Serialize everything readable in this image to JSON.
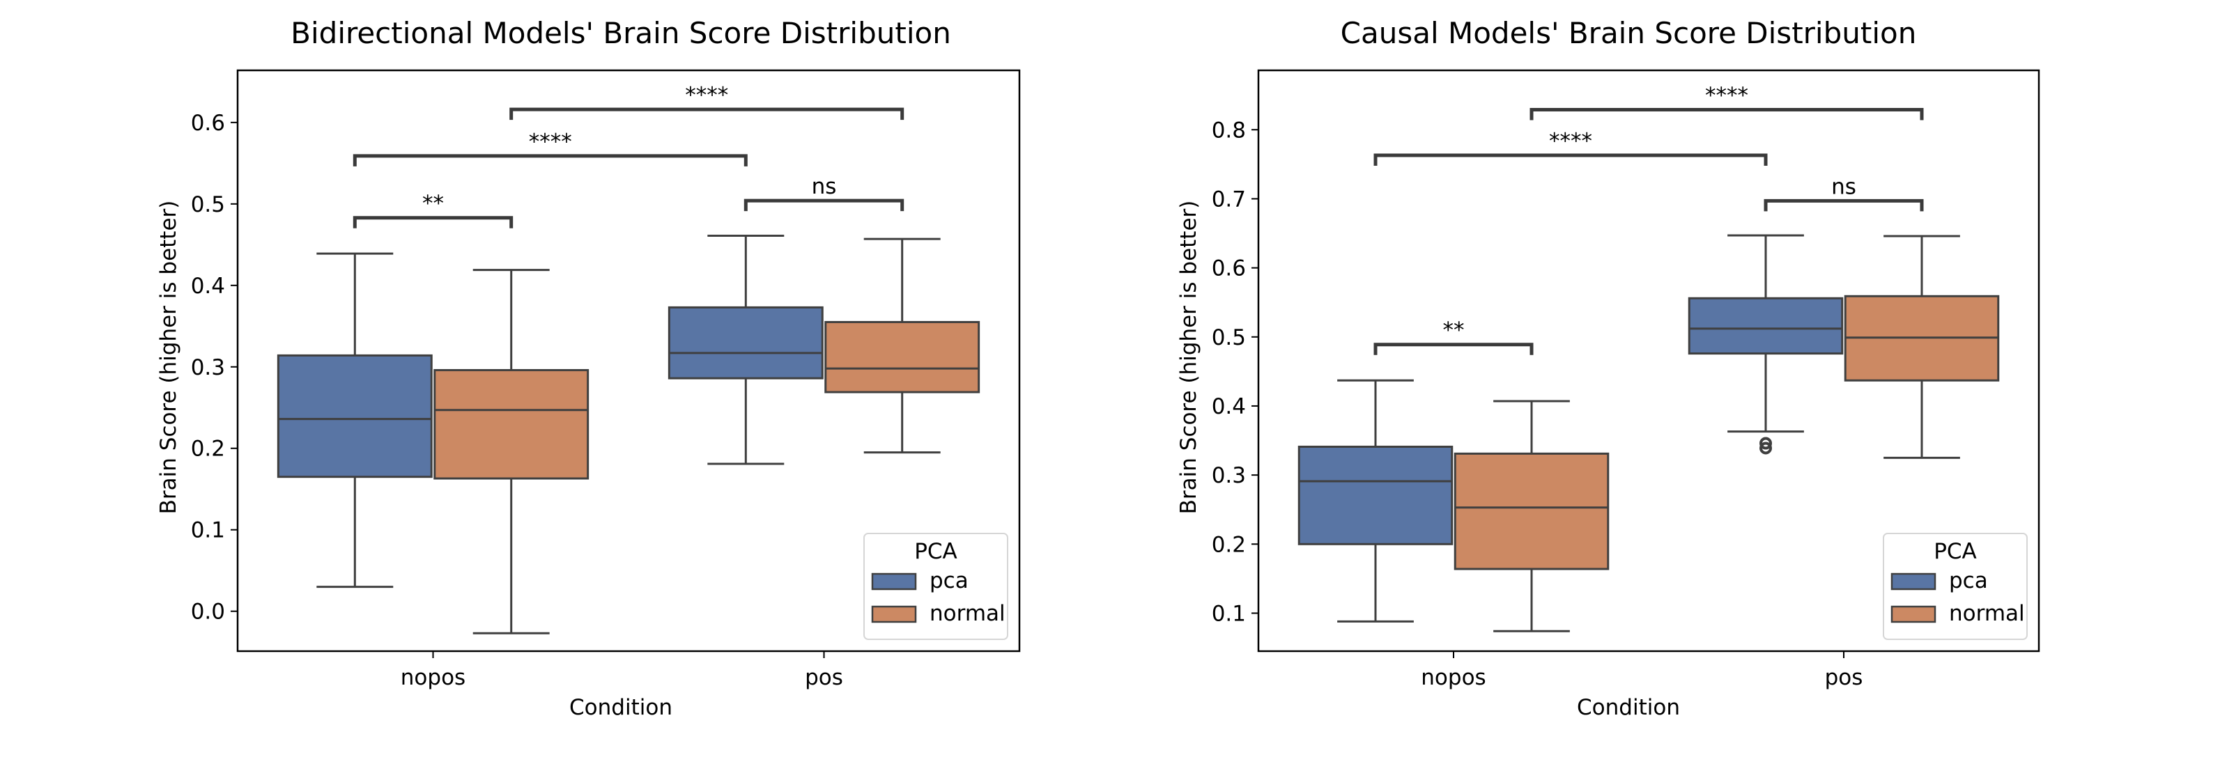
{
  "chart_data": [
    {
      "type": "box",
      "title": "Bidirectional Models' Brain Score Distribution",
      "xlabel": "Condition",
      "ylabel": "Brain Score (higher is better)",
      "ylim": [
        -0.049,
        0.664
      ],
      "yticks": [
        0.0,
        0.1,
        0.2,
        0.3,
        0.4,
        0.5,
        0.6
      ],
      "ytick_labels": [
        "0.0",
        "0.1",
        "0.2",
        "0.3",
        "0.4",
        "0.5",
        "0.6"
      ],
      "categories": [
        "nopos",
        "pos"
      ],
      "grid": false,
      "legend": {
        "title": "PCA",
        "placement": "lower-right",
        "entries": [
          "pca",
          "normal"
        ]
      },
      "series": [
        {
          "name": "pca",
          "color": "#5975a4",
          "boxes": [
            {
              "category": "nopos",
              "whislo": 0.03,
              "q1": 0.165,
              "median": 0.236,
              "q3": 0.314,
              "whishi": 0.439,
              "fliers": []
            },
            {
              "category": "pos",
              "whislo": 0.181,
              "q1": 0.286,
              "median": 0.317,
              "q3": 0.373,
              "whishi": 0.461,
              "fliers": []
            }
          ]
        },
        {
          "name": "normal",
          "color": "#cc8963",
          "boxes": [
            {
              "category": "nopos",
              "whislo": -0.027,
              "q1": 0.163,
              "median": 0.247,
              "q3": 0.296,
              "whishi": 0.419,
              "fliers": []
            },
            {
              "category": "pos",
              "whislo": 0.195,
              "q1": 0.269,
              "median": 0.298,
              "q3": 0.355,
              "whishi": 0.457,
              "fliers": []
            }
          ]
        }
      ],
      "annotations": [
        {
          "from": [
            "nopos",
            "pca"
          ],
          "to": [
            "nopos",
            "normal"
          ],
          "y": 0.483,
          "text": "**"
        },
        {
          "from": [
            "pos",
            "pca"
          ],
          "to": [
            "pos",
            "normal"
          ],
          "y": 0.504,
          "text": "ns"
        },
        {
          "from": [
            "nopos",
            "pca"
          ],
          "to": [
            "pos",
            "pca"
          ],
          "y": 0.559,
          "text": "****"
        },
        {
          "from": [
            "nopos",
            "normal"
          ],
          "to": [
            "pos",
            "normal"
          ],
          "y": 0.616,
          "text": "****"
        }
      ]
    },
    {
      "type": "box",
      "title": "Causal Models' Brain Score Distribution",
      "xlabel": "Condition",
      "ylabel": "Brain Score (higher is better)",
      "ylim": [
        0.045,
        0.886
      ],
      "yticks": [
        0.1,
        0.2,
        0.3,
        0.4,
        0.5,
        0.6,
        0.7,
        0.8
      ],
      "ytick_labels": [
        "0.1",
        "0.2",
        "0.3",
        "0.4",
        "0.5",
        "0.6",
        "0.7",
        "0.8"
      ],
      "categories": [
        "nopos",
        "pos"
      ],
      "grid": false,
      "legend": {
        "title": "PCA",
        "placement": "lower-right",
        "entries": [
          "pca",
          "normal"
        ]
      },
      "series": [
        {
          "name": "pca",
          "color": "#5975a4",
          "boxes": [
            {
              "category": "nopos",
              "whislo": 0.088,
              "q1": 0.2,
              "median": 0.291,
              "q3": 0.341,
              "whishi": 0.437,
              "fliers": []
            },
            {
              "category": "pos",
              "whislo": 0.363,
              "q1": 0.476,
              "median": 0.512,
              "q3": 0.556,
              "whishi": 0.647,
              "fliers": [
                0.346,
                0.339
              ]
            }
          ]
        },
        {
          "name": "normal",
          "color": "#cc8963",
          "boxes": [
            {
              "category": "nopos",
              "whislo": 0.074,
              "q1": 0.164,
              "median": 0.253,
              "q3": 0.331,
              "whishi": 0.407,
              "fliers": []
            },
            {
              "category": "pos",
              "whislo": 0.325,
              "q1": 0.437,
              "median": 0.499,
              "q3": 0.559,
              "whishi": 0.646,
              "fliers": []
            }
          ]
        }
      ],
      "annotations": [
        {
          "from": [
            "nopos",
            "pca"
          ],
          "to": [
            "nopos",
            "normal"
          ],
          "y": 0.489,
          "text": "**"
        },
        {
          "from": [
            "pos",
            "pca"
          ],
          "to": [
            "pos",
            "normal"
          ],
          "y": 0.697,
          "text": "ns"
        },
        {
          "from": [
            "nopos",
            "pca"
          ],
          "to": [
            "pos",
            "pca"
          ],
          "y": 0.763,
          "text": "****"
        },
        {
          "from": [
            "nopos",
            "normal"
          ],
          "to": [
            "pos",
            "normal"
          ],
          "y": 0.829,
          "text": "****"
        }
      ]
    }
  ]
}
